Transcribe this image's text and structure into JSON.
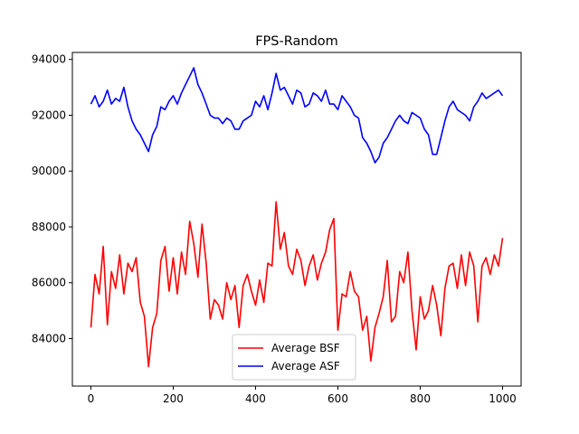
{
  "chart_data": {
    "type": "line",
    "title": "FPS-Random",
    "xlabel": "",
    "ylabel": "",
    "xlim": [
      -45,
      1045
    ],
    "ylim": [
      82300,
      94250
    ],
    "x_ticks": [
      0,
      200,
      400,
      600,
      800,
      1000
    ],
    "y_ticks": [
      84000,
      86000,
      88000,
      90000,
      92000,
      94000
    ],
    "x_tick_labels": [
      "0",
      "200",
      "400",
      "600",
      "800",
      "1000"
    ],
    "y_tick_labels": [
      "84000",
      "86000",
      "88000",
      "90000",
      "92000",
      "94000"
    ],
    "grid": false,
    "legend_position": "lower-center",
    "x": [
      0,
      10,
      20,
      30,
      40,
      50,
      60,
      70,
      80,
      90,
      100,
      110,
      120,
      130,
      140,
      150,
      160,
      170,
      180,
      190,
      200,
      210,
      220,
      230,
      240,
      250,
      260,
      270,
      280,
      290,
      300,
      310,
      320,
      330,
      340,
      350,
      360,
      370,
      380,
      390,
      400,
      410,
      420,
      430,
      440,
      450,
      460,
      470,
      480,
      490,
      500,
      510,
      520,
      530,
      540,
      550,
      560,
      570,
      580,
      590,
      600,
      610,
      620,
      630,
      640,
      650,
      660,
      670,
      680,
      690,
      700,
      710,
      720,
      730,
      740,
      750,
      760,
      770,
      780,
      790,
      800,
      810,
      820,
      830,
      840,
      850,
      860,
      870,
      880,
      890,
      900,
      910,
      920,
      930,
      940,
      950,
      960,
      970,
      980,
      990,
      1000
    ],
    "series": [
      {
        "name": "Average BSF",
        "color": "#ff0000",
        "values": [
          84400,
          86300,
          85600,
          87300,
          84500,
          86400,
          85800,
          87000,
          85600,
          86700,
          86400,
          86900,
          85300,
          84800,
          83000,
          84400,
          84900,
          86800,
          87300,
          85700,
          86900,
          85600,
          87100,
          86300,
          88200,
          87400,
          86200,
          88100,
          86700,
          84700,
          85400,
          85200,
          84700,
          86000,
          85400,
          85900,
          84400,
          85900,
          86300,
          85700,
          85200,
          86100,
          85300,
          86700,
          86600,
          88900,
          87200,
          87800,
          86600,
          86300,
          87200,
          86800,
          85900,
          86600,
          87000,
          86100,
          86700,
          87100,
          87900,
          88300,
          84300,
          85600,
          85500,
          86400,
          85700,
          85500,
          84300,
          84800,
          83200,
          84400,
          84900,
          85500,
          86800,
          84600,
          84800,
          86400,
          86000,
          87100,
          85000,
          83600,
          85500,
          84700,
          85000,
          85900,
          85200,
          84100,
          85800,
          86600,
          86700,
          85800,
          87000,
          85900,
          87100,
          86600,
          84600,
          86600,
          86900,
          86300,
          87000,
          86600,
          87600
        ]
      },
      {
        "name": "Average ASF",
        "color": "#0000ff",
        "values": [
          92400,
          92700,
          92300,
          92500,
          92900,
          92400,
          92600,
          92500,
          93000,
          92300,
          91800,
          91500,
          91300,
          91000,
          90700,
          91300,
          91600,
          92300,
          92200,
          92500,
          92700,
          92400,
          92800,
          93100,
          93400,
          93700,
          93100,
          92800,
          92400,
          92000,
          91900,
          91900,
          91700,
          91900,
          91800,
          91500,
          91500,
          91800,
          91900,
          92000,
          92500,
          92300,
          92700,
          92200,
          92800,
          93500,
          92900,
          93000,
          92700,
          92400,
          92900,
          92800,
          92300,
          92400,
          92800,
          92700,
          92500,
          92900,
          92400,
          92400,
          92200,
          92700,
          92500,
          92300,
          92000,
          91900,
          91200,
          91000,
          90700,
          90300,
          90500,
          91000,
          91200,
          91500,
          91800,
          92000,
          91800,
          91700,
          92100,
          92000,
          91900,
          91500,
          91300,
          90600,
          90600,
          91200,
          91800,
          92300,
          92500,
          92200,
          92100,
          92000,
          91800,
          92300,
          92500,
          92800,
          92600,
          92700,
          92800,
          92900,
          92700
        ]
      }
    ]
  }
}
